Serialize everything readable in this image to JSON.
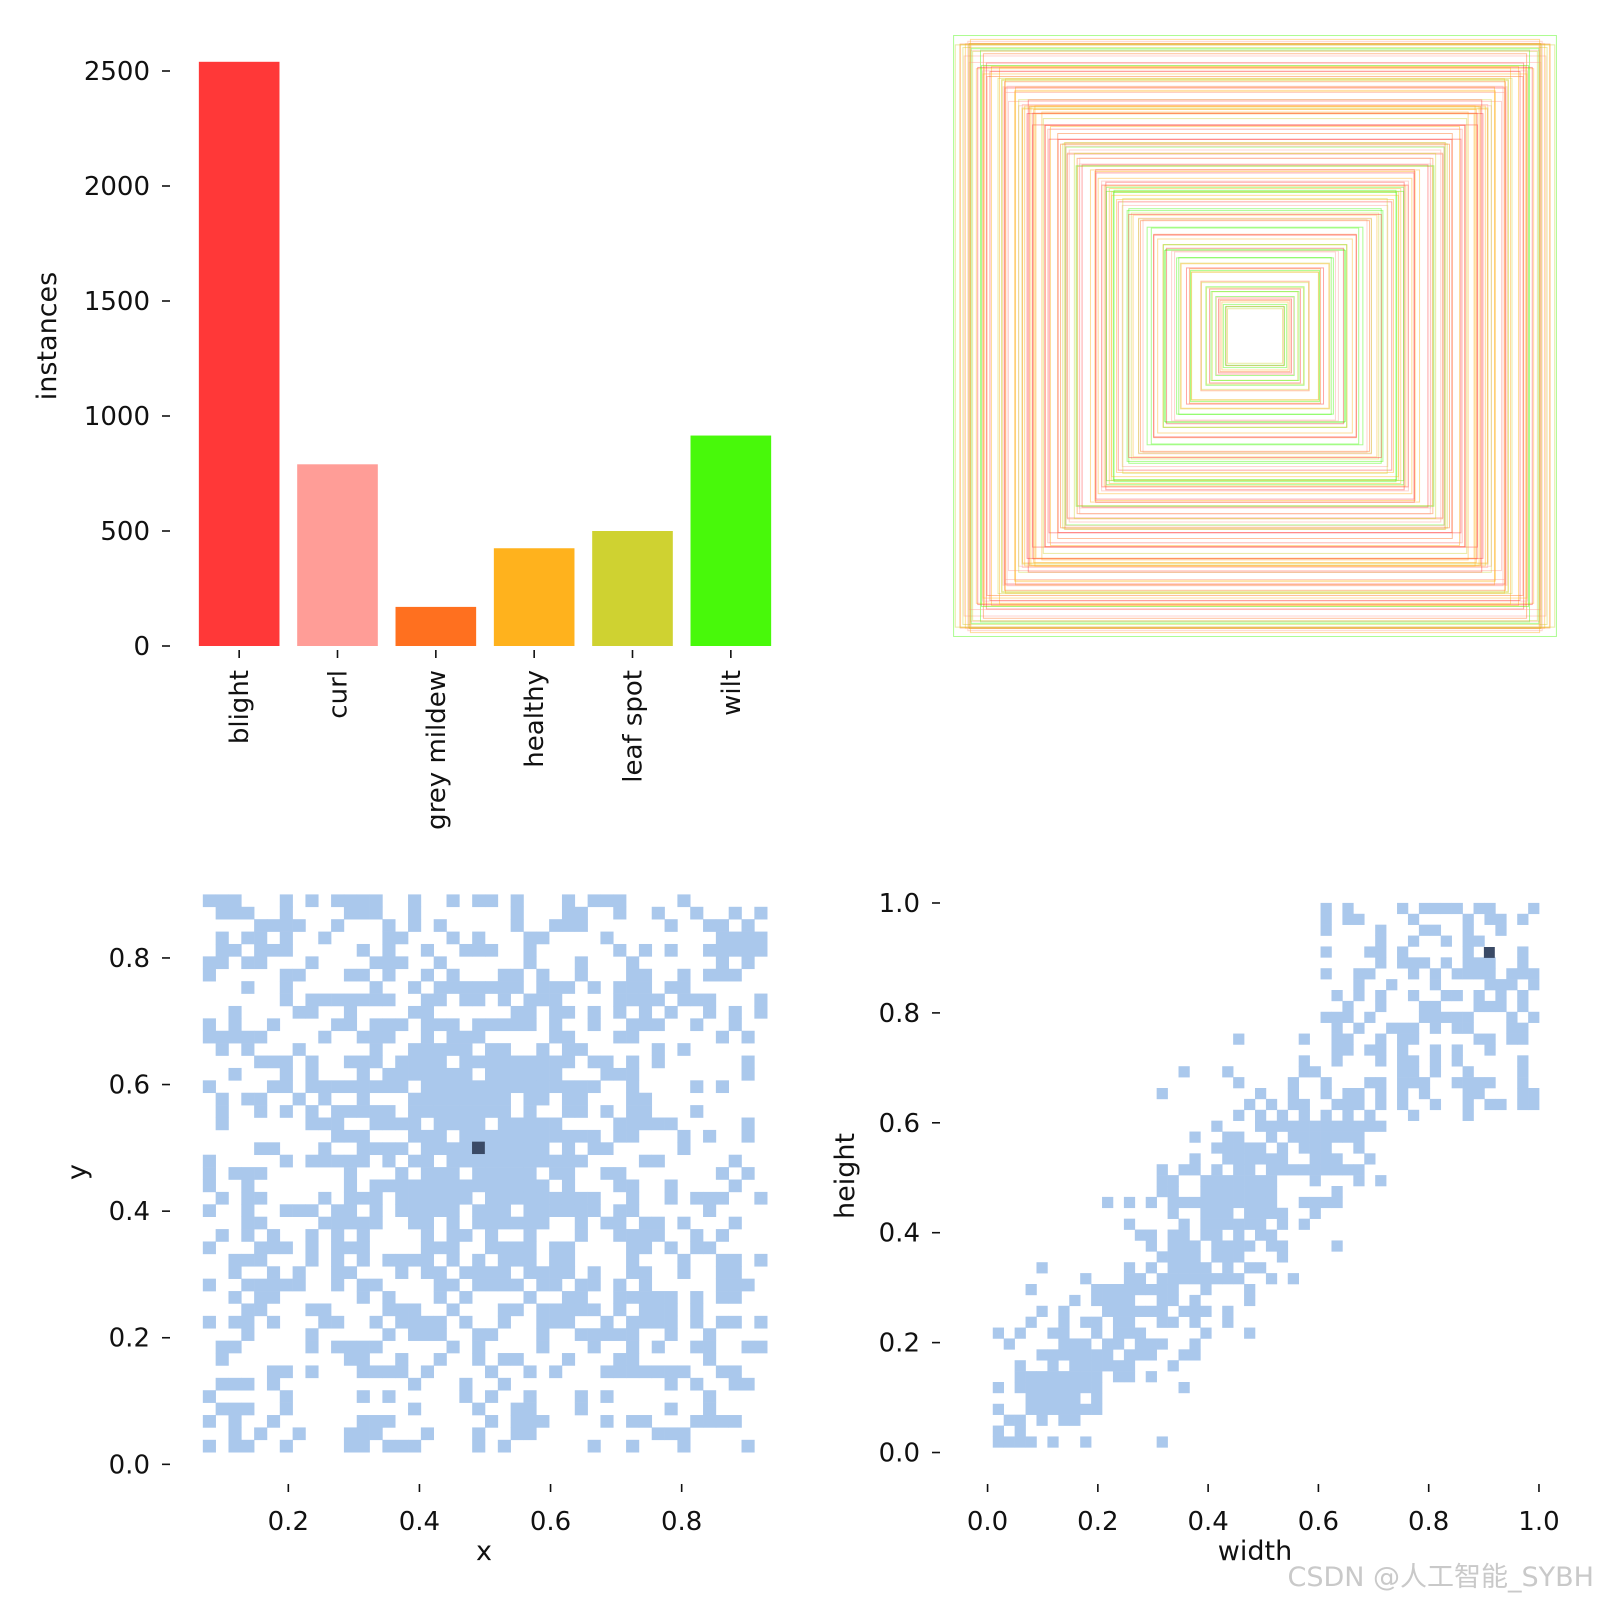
{
  "chart_data": [
    {
      "type": "bar",
      "categories": [
        "blight",
        "curl",
        "grey mildew",
        "healthy",
        "leaf spot",
        "wilt"
      ],
      "values": [
        2540,
        790,
        170,
        425,
        500,
        915
      ],
      "colors": [
        "#ff3838",
        "#ff9d97",
        "#ff701f",
        "#ffb21d",
        "#cfd231",
        "#48f90a"
      ],
      "ylabel": "instances",
      "ylim": [
        0,
        2600
      ],
      "yticks": [
        0,
        500,
        1000,
        1500,
        2000,
        2500
      ]
    },
    {
      "type": "boxes",
      "description_free": true,
      "box_colors": [
        "#ff3838",
        "#ff9d97",
        "#ff701f",
        "#ffb21d",
        "#cfd231",
        "#48f90a"
      ],
      "sizes": [
        0.98,
        0.97,
        0.96,
        0.95,
        0.93,
        0.9,
        0.88,
        0.86,
        0.84,
        0.82,
        0.8,
        0.78,
        0.76,
        0.74,
        0.72,
        0.7,
        0.67,
        0.64,
        0.62,
        0.6,
        0.57,
        0.54,
        0.52,
        0.5,
        0.47,
        0.44,
        0.41,
        0.38,
        0.35,
        0.32,
        0.29,
        0.26,
        0.23,
        0.2,
        0.17,
        0.14,
        0.11,
        0.08
      ]
    },
    {
      "type": "heatmap",
      "xlabel": "x",
      "ylabel": "y",
      "xlim": [
        0.05,
        0.95
      ],
      "ylim": [
        -0.02,
        0.92
      ],
      "xticks": [
        "0.2",
        "0.4",
        "0.6",
        "0.8"
      ],
      "yticks": [
        "0.0",
        "0.2",
        "0.4",
        "0.6",
        "0.8"
      ],
      "cell_color": "#aac8ec",
      "peak_color": "#3a4a66",
      "peak": [
        0.49,
        0.5
      ],
      "center": [
        0.5,
        0.5
      ],
      "spread": [
        0.14,
        0.15
      ]
    },
    {
      "type": "heatmap",
      "xlabel": "width",
      "ylabel": "height",
      "xlim": [
        -0.05,
        1.02
      ],
      "ylim": [
        -0.05,
        1.02
      ],
      "xticks": [
        "0.0",
        "0.2",
        "0.4",
        "0.6",
        "0.8",
        "1.0"
      ],
      "yticks": [
        "0.0",
        "0.2",
        "0.4",
        "0.6",
        "0.8",
        "1.0"
      ],
      "cell_color": "#aac8ec",
      "peak_color": "#3a4a66",
      "peak": [
        0.91,
        0.91
      ],
      "center": [
        0.35,
        0.33
      ],
      "spread": [
        0.2,
        0.2
      ]
    }
  ],
  "watermark": "CSDN @人工智能_SYBH"
}
